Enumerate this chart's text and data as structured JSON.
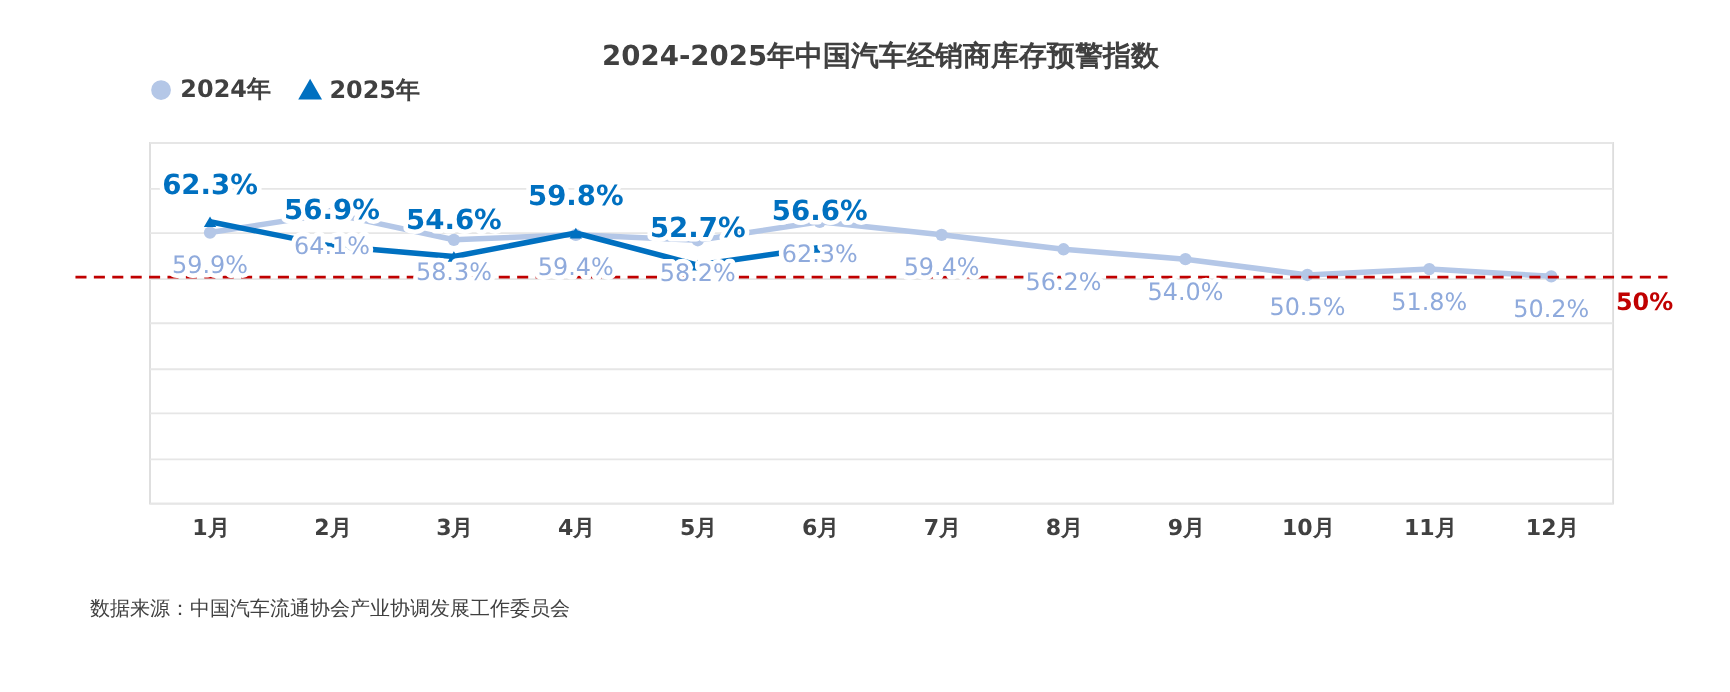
{
  "chart_data": {
    "type": "line",
    "title": "2024-2025年中国汽车经销商库存预警指数",
    "categories": [
      "1月",
      "2月",
      "3月",
      "4月",
      "5月",
      "6月",
      "7月",
      "8月",
      "9月",
      "10月",
      "11月",
      "12月"
    ],
    "series": [
      {
        "name": "2024年",
        "color": "#b4c7e7",
        "marker": "circle",
        "values": [
          59.9,
          64.1,
          58.3,
          59.4,
          58.2,
          62.3,
          59.4,
          56.2,
          54.0,
          50.5,
          51.8,
          50.2
        ],
        "value_labels": [
          "59.9%",
          "64.1%",
          "58.3%",
          "59.4%",
          "58.2%",
          "62.3%",
          "59.4%",
          "56.2%",
          "54.0%",
          "50.5%",
          "51.8%",
          "50.2%"
        ]
      },
      {
        "name": "2025年",
        "color": "#0070c0",
        "marker": "triangle",
        "values": [
          62.3,
          56.9,
          54.6,
          59.8,
          52.7,
          56.6,
          null,
          null,
          null,
          null,
          null,
          null
        ],
        "value_labels": [
          "62.3%",
          "56.9%",
          "54.6%",
          "59.8%",
          "52.7%",
          "56.6%",
          null,
          null,
          null,
          null,
          null,
          null
        ]
      }
    ],
    "ylim": [
      0,
      80
    ],
    "tick_labels": "x",
    "grid": "y",
    "legend": "top",
    "line_style": "solid",
    "ref_lines": [
      {
        "axis": "y",
        "value": 50,
        "label": "50%",
        "color": "#c00000",
        "line_style": "dashed"
      }
    ],
    "annotations": [
      "数据来源：中国汽车流通协会产业协调发展工作委员会"
    ]
  }
}
